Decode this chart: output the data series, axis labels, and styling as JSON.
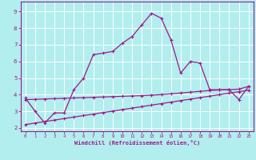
{
  "xlabel": "Windchill (Refroidissement éolien,°C)",
  "background_color": "#b2eeee",
  "line_color": "#9b1b8b",
  "grid_color": "#ffffff",
  "x_hours": [
    0,
    1,
    2,
    3,
    4,
    5,
    6,
    7,
    8,
    9,
    10,
    11,
    12,
    13,
    14,
    15,
    16,
    17,
    18,
    19,
    20,
    21,
    22,
    23
  ],
  "y_windchill": [
    3.8,
    3.0,
    2.3,
    2.9,
    2.9,
    4.3,
    5.0,
    6.4,
    6.5,
    6.6,
    7.1,
    7.5,
    8.2,
    8.9,
    8.6,
    7.3,
    5.3,
    6.0,
    5.9,
    4.3,
    4.3,
    4.3,
    3.7,
    4.5
  ],
  "y_lin_low": [
    2.2,
    2.29,
    2.38,
    2.47,
    2.56,
    2.65,
    2.74,
    2.83,
    2.92,
    3.01,
    3.1,
    3.19,
    3.28,
    3.37,
    3.46,
    3.55,
    3.64,
    3.73,
    3.82,
    3.91,
    4.0,
    4.09,
    4.18,
    4.27
  ],
  "y_lin_high": [
    3.7,
    3.72,
    3.74,
    3.76,
    3.78,
    3.8,
    3.82,
    3.84,
    3.86,
    3.88,
    3.9,
    3.92,
    3.94,
    3.97,
    4.0,
    4.05,
    4.1,
    4.15,
    4.2,
    4.25,
    4.28,
    4.3,
    4.33,
    4.5
  ],
  "ylim": [
    1.8,
    9.6
  ],
  "xlim": [
    -0.5,
    23.5
  ],
  "yticks": [
    2,
    3,
    4,
    5,
    6,
    7,
    8,
    9
  ],
  "xticks": [
    0,
    1,
    2,
    3,
    4,
    5,
    6,
    7,
    8,
    9,
    10,
    11,
    12,
    13,
    14,
    15,
    16,
    17,
    18,
    19,
    20,
    21,
    22,
    23
  ]
}
